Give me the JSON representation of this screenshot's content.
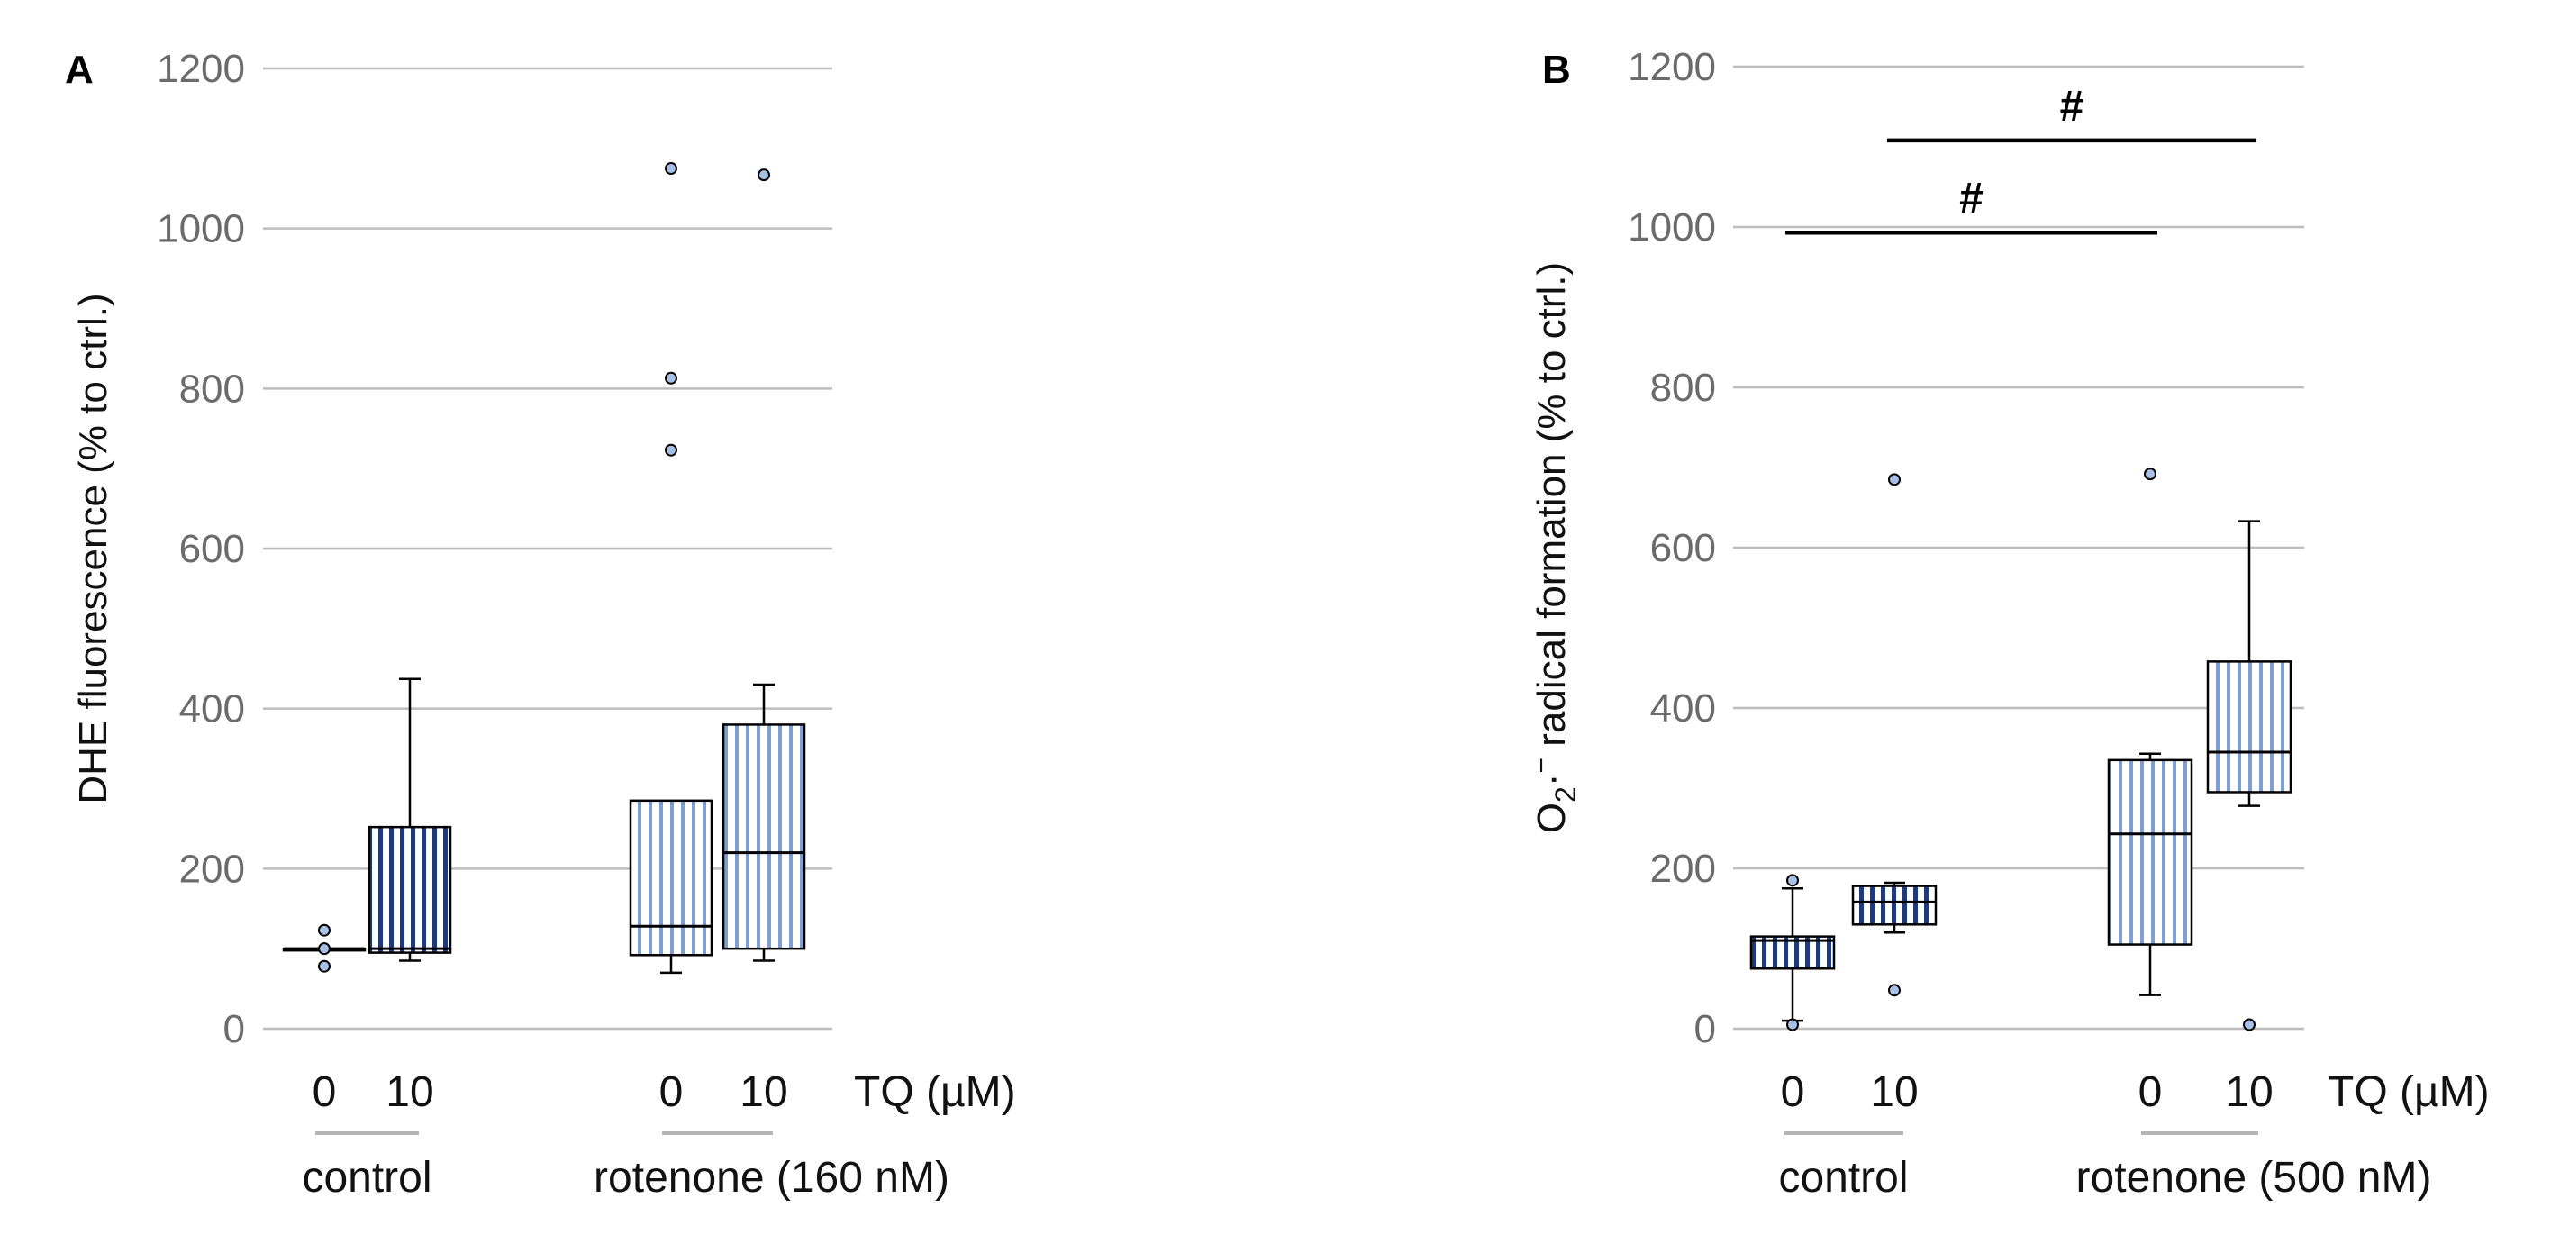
{
  "chart_data": [
    {
      "panel": "A",
      "type": "box",
      "ylabel": "DHE fluorescence (% to ctrl.)",
      "ylim": [
        0,
        1200
      ],
      "yticks": [
        0,
        200,
        400,
        600,
        800,
        1000,
        1200
      ],
      "grid": true,
      "x_unit_label": "TQ (µM)",
      "groups": [
        {
          "label": "control",
          "categories": [
            "0",
            "10"
          ]
        },
        {
          "label": "rotenone (160 nM)",
          "categories": [
            "0",
            "10"
          ]
        }
      ],
      "boxes": [
        {
          "group": "control",
          "tq": "0",
          "whisker_low": 100,
          "q1": 100,
          "median": 100,
          "q3": 100,
          "whisker_high": 100,
          "outliers": [
            123,
            100,
            78
          ],
          "fill": "#1f3a78"
        },
        {
          "group": "control",
          "tq": "10",
          "whisker_low": 85,
          "q1": 95,
          "median": 100,
          "q3": 252,
          "whisker_high": 437,
          "outliers": [],
          "fill": "#1f3a78"
        },
        {
          "group": "rotenone (160 nM)",
          "tq": "0",
          "whisker_low": 70,
          "q1": 92,
          "median": 128,
          "q3": 285,
          "whisker_high": 285,
          "outliers": [
            1075,
            813,
            723
          ],
          "fill": "#7e9fd4"
        },
        {
          "group": "rotenone (160 nM)",
          "tq": "10",
          "whisker_low": 85,
          "q1": 100,
          "median": 220,
          "q3": 380,
          "whisker_high": 430,
          "outliers": [
            1067
          ],
          "fill": "#7e9fd4"
        }
      ],
      "significance": []
    },
    {
      "panel": "B",
      "type": "box",
      "ylabel_parts": [
        "O",
        "2",
        "·",
        "−",
        " radical formation (% to ctrl.)"
      ],
      "ylim": [
        0,
        1200
      ],
      "yticks": [
        0,
        200,
        400,
        600,
        800,
        1000,
        1200
      ],
      "grid": true,
      "x_unit_label": "TQ (µM)",
      "groups": [
        {
          "label": "control",
          "categories": [
            "0",
            "10"
          ]
        },
        {
          "label": "rotenone (500 nM)",
          "categories": [
            "0",
            "10"
          ]
        }
      ],
      "boxes": [
        {
          "group": "control",
          "tq": "0",
          "whisker_low": 10,
          "q1": 75,
          "median": 110,
          "q3": 115,
          "whisker_high": 175,
          "outliers": [
            185,
            5
          ],
          "fill": "#1f3a78"
        },
        {
          "group": "control",
          "tq": "10",
          "whisker_low": 120,
          "q1": 130,
          "median": 158,
          "q3": 178,
          "whisker_high": 182,
          "outliers": [
            685,
            48
          ],
          "fill": "#1f3a78"
        },
        {
          "group": "rotenone (500 nM)",
          "tq": "0",
          "whisker_low": 42,
          "q1": 105,
          "median": 243,
          "q3": 335,
          "whisker_high": 343,
          "outliers": [
            692
          ],
          "fill": "#7e9fd4"
        },
        {
          "group": "rotenone (500 nM)",
          "tq": "10",
          "whisker_low": 278,
          "q1": 295,
          "median": 345,
          "q3": 458,
          "whisker_high": 633,
          "outliers": [
            5
          ],
          "fill": "#7e9fd4"
        }
      ],
      "significance": [
        {
          "from": 0,
          "to": 2,
          "y": 993,
          "label": "#"
        },
        {
          "from": 1,
          "to": 3,
          "y": 1108,
          "label": "#"
        }
      ]
    }
  ]
}
